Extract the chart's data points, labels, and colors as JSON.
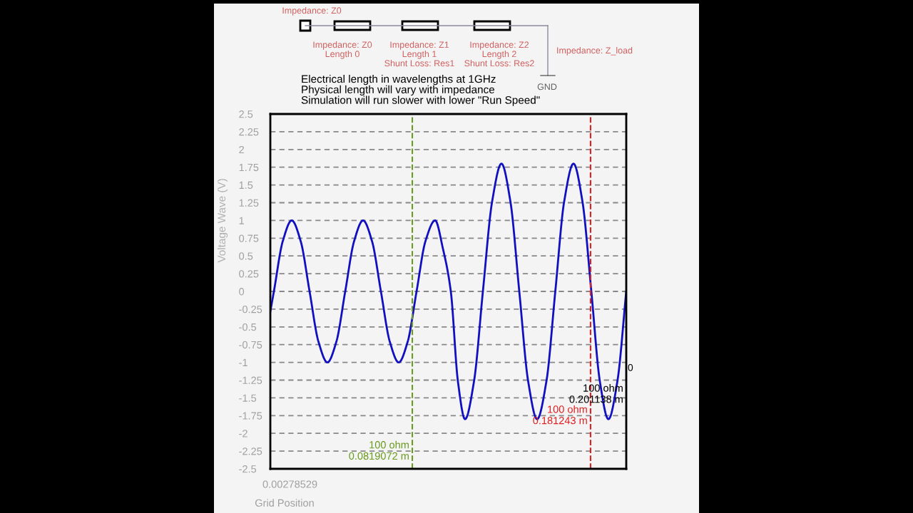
{
  "chart_data": {
    "type": "line",
    "ylabel": "Voltage Wave (V)",
    "xlabel": "Grid Position",
    "x": [
      0.00279,
      0.00477,
      0.00974,
      0.01471,
      0.01968,
      0.02465,
      0.02962,
      0.03459,
      0.03956,
      0.04452,
      0.04949,
      0.05446,
      0.05943,
      0.0644,
      0.06937,
      0.07434,
      0.07931,
      0.08428,
      0.08925,
      0.09462,
      0.09899,
      0.10336,
      0.10733,
      0.1113,
      0.11627,
      0.12124,
      0.12641,
      0.13158,
      0.13655,
      0.14152,
      0.14649,
      0.15146,
      0.15662,
      0.16159,
      0.16656,
      0.17173,
      0.1767,
      0.18167,
      0.18644,
      0.1912,
      0.19617,
      0.20113
    ],
    "series": [
      {
        "color": "#1010c0",
        "values": [
          -0.28,
          0,
          0.71,
          1,
          0.71,
          0,
          -0.71,
          -1,
          -0.71,
          0,
          0.71,
          1,
          0.71,
          0,
          -0.71,
          -1,
          -0.71,
          0,
          0.71,
          1,
          0.6,
          0,
          -1.27,
          -1.8,
          -1.27,
          0,
          1.27,
          1.8,
          1.27,
          0,
          -1.27,
          -1.8,
          -1.27,
          0,
          1.27,
          1.8,
          1.27,
          0,
          -1.27,
          -1.8,
          -1.27,
          0
        ]
      }
    ],
    "xlim": [
      0.00278529,
      0.201138
    ],
    "tick_labels": "y",
    "ylim": [
      -2.5,
      2.5
    ],
    "yticks": [
      -2.5,
      -2.25,
      -2,
      -1.75,
      -1.5,
      -1.25,
      -1,
      -0.75,
      -0.5,
      -0.25,
      0,
      0.25,
      0.5,
      0.75,
      1,
      1.25,
      1.5,
      1.75,
      2,
      2.25,
      2.5
    ],
    "grid": "y",
    "line_style": "solid",
    "ref_lines": [
      {
        "axis": "x",
        "value": 0.0819072,
        "label": "100 ohm\n0.0819072 m",
        "color": "#6a9a1e",
        "line_style": "dashed"
      },
      {
        "axis": "x",
        "value": 0.181243,
        "label": "100 ohm\n0.181243 m",
        "color": "#e02020",
        "line_style": "dashed"
      },
      {
        "axis": "x",
        "value": 0.201138,
        "label": "100 ohm\n0.201138 m",
        "color": "#000000",
        "line_style": "solid"
      }
    ],
    "annotations": [
      "Impedance: Z0",
      "Impedance: Z0\nLength 0",
      "Impedance: Z1\nLength 1\nShunt Loss: Res1",
      "Impedance: Z2\nLength 2\nShunt Loss: Res2",
      "Impedance: Z_load",
      "GND",
      "Electrical length in wavelengths at 1GHz\nPhysical length will vary with impedance\nSimulation will run slower with lower \"Run Speed\"",
      "0",
      "0.00278529"
    ]
  }
}
